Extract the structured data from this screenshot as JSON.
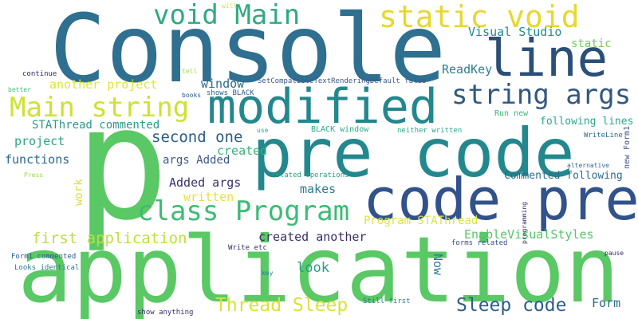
{
  "words": [
    {
      "id": "console",
      "text": "Console",
      "color": "#2f6f8f"
    },
    {
      "id": "p",
      "text": "p",
      "color": "#5ac864"
    },
    {
      "id": "application",
      "text": "application",
      "color": "#5ac864"
    },
    {
      "id": "pre-code",
      "text": "pre code",
      "color": "#23888e"
    },
    {
      "id": "code-pre",
      "text": "code pre",
      "color": "#31528b"
    },
    {
      "id": "modified",
      "text": "modified",
      "color": "#23888e"
    },
    {
      "id": "line",
      "text": "line",
      "color": "#2a4f78"
    },
    {
      "id": "static-void",
      "text": "static void",
      "color": "#e6d82e"
    },
    {
      "id": "void-main",
      "text": "void Main",
      "color": "#31a97f"
    },
    {
      "id": "main-string",
      "text": "Main string",
      "color": "#cfe133"
    },
    {
      "id": "string-args",
      "text": "string args",
      "color": "#31597f"
    },
    {
      "id": "class-program",
      "text": "class Program",
      "color": "#3dbc74"
    },
    {
      "id": "sleep-code",
      "text": "Sleep code",
      "color": "#2e5d8a"
    },
    {
      "id": "thread-sleep",
      "text": "Thread Sleep",
      "color": "#d8e237"
    },
    {
      "id": "first-application",
      "text": "first application",
      "color": "#bde03a"
    },
    {
      "id": "second-one",
      "text": "second one",
      "color": "#2a5d84"
    },
    {
      "id": "visual-studio",
      "text": "Visual Studio",
      "color": "#238a8d"
    },
    {
      "id": "static",
      "text": "static",
      "color": "#6fcf57"
    },
    {
      "id": "readkey",
      "text": "ReadKey",
      "color": "#2b7f8e"
    },
    {
      "id": "another-project",
      "text": "another project",
      "color": "#e2e33a"
    },
    {
      "id": "window",
      "text": "window",
      "color": "#2a6a8a"
    },
    {
      "id": "setcompat",
      "text": "SetCompatibleTextRenderingDefault false",
      "color": "#3b5a8a"
    },
    {
      "id": "stathread-commented",
      "text": "STAThread commented",
      "color": "#2a9a88"
    },
    {
      "id": "project",
      "text": "project",
      "color": "#2ea57f"
    },
    {
      "id": "functions",
      "text": "functions",
      "color": "#2a6a8a"
    },
    {
      "id": "created",
      "text": "created",
      "color": "#36b37a"
    },
    {
      "id": "args-added",
      "text": "args Added",
      "color": "#3a5a8a"
    },
    {
      "id": "added-args",
      "text": "Added args",
      "color": "#3a2f6e"
    },
    {
      "id": "written",
      "text": "written",
      "color": "#e3e43a"
    },
    {
      "id": "makes",
      "text": "makes",
      "color": "#2a7a8c"
    },
    {
      "id": "program-stathread",
      "text": "Program STAThread",
      "color": "#d9e34a"
    },
    {
      "id": "created-another",
      "text": "created another",
      "color": "#3a2d6a"
    },
    {
      "id": "enablevisualstyles",
      "text": "EnableVisualStyles",
      "color": "#56c46a"
    },
    {
      "id": "look",
      "text": "look",
      "color": "#2a9a88"
    },
    {
      "id": "now",
      "text": "Now",
      "color": "#2a7a8c"
    },
    {
      "id": "form",
      "text": "Form",
      "color": "#2a6a8a"
    },
    {
      "id": "following-lines",
      "text": "following lines",
      "color": "#2aa88a"
    },
    {
      "id": "commented-following",
      "text": "Commented following",
      "color": "#2a6a8a"
    },
    {
      "id": "run-new",
      "text": "Run new",
      "color": "#3bb57a"
    },
    {
      "id": "work",
      "text": "work",
      "color": "#d4e14a"
    },
    {
      "id": "shows-black",
      "text": "shows BLACK",
      "color": "#2a5a8a"
    },
    {
      "id": "black-window",
      "text": "BLACK window",
      "color": "#2aa88a"
    },
    {
      "id": "neither-written",
      "text": "neither written",
      "color": "#2aa88a"
    },
    {
      "id": "related-operations",
      "text": "related operations",
      "color": "#2a9a88"
    },
    {
      "id": "writeline",
      "text": "WriteLine",
      "color": "#2a6a8a"
    },
    {
      "id": "new-form1",
      "text": "new Form1",
      "color": "#3a4f8a"
    },
    {
      "id": "alternative",
      "text": "alternative",
      "color": "#2a6a8a"
    },
    {
      "id": "programming",
      "text": "programming",
      "color": "#3a2d6a"
    },
    {
      "id": "continue",
      "text": "continue",
      "color": "#3a2d6a"
    },
    {
      "id": "better",
      "text": "better",
      "color": "#44bf70"
    },
    {
      "id": "tell",
      "text": "tell",
      "color": "#9fda3a"
    },
    {
      "id": "will",
      "text": "will",
      "color": "#cfe14a"
    },
    {
      "id": "books",
      "text": "books",
      "color": "#2a5a8a"
    },
    {
      "id": "use",
      "text": "use",
      "color": "#2aa88a"
    },
    {
      "id": "press",
      "text": "Press",
      "color": "#9fda3a"
    },
    {
      "id": "form1-commented",
      "text": "Form1 commented",
      "color": "#2a5a8a"
    },
    {
      "id": "looks-identical",
      "text": "Looks identical",
      "color": "#2a7a8c"
    },
    {
      "id": "write-etc",
      "text": "Write etc",
      "color": "#3a2d6a"
    },
    {
      "id": "forms-related",
      "text": "forms related",
      "color": "#3a4f8a"
    },
    {
      "id": "key",
      "text": "key",
      "color": "#2a7a8c"
    },
    {
      "id": "pause",
      "text": "pause",
      "color": "#3a2d6a"
    },
    {
      "id": "show-anything",
      "text": "show anything",
      "color": "#3a2d6a"
    },
    {
      "id": "still-first",
      "text": "Still first",
      "color": "#2a7a8c"
    }
  ]
}
